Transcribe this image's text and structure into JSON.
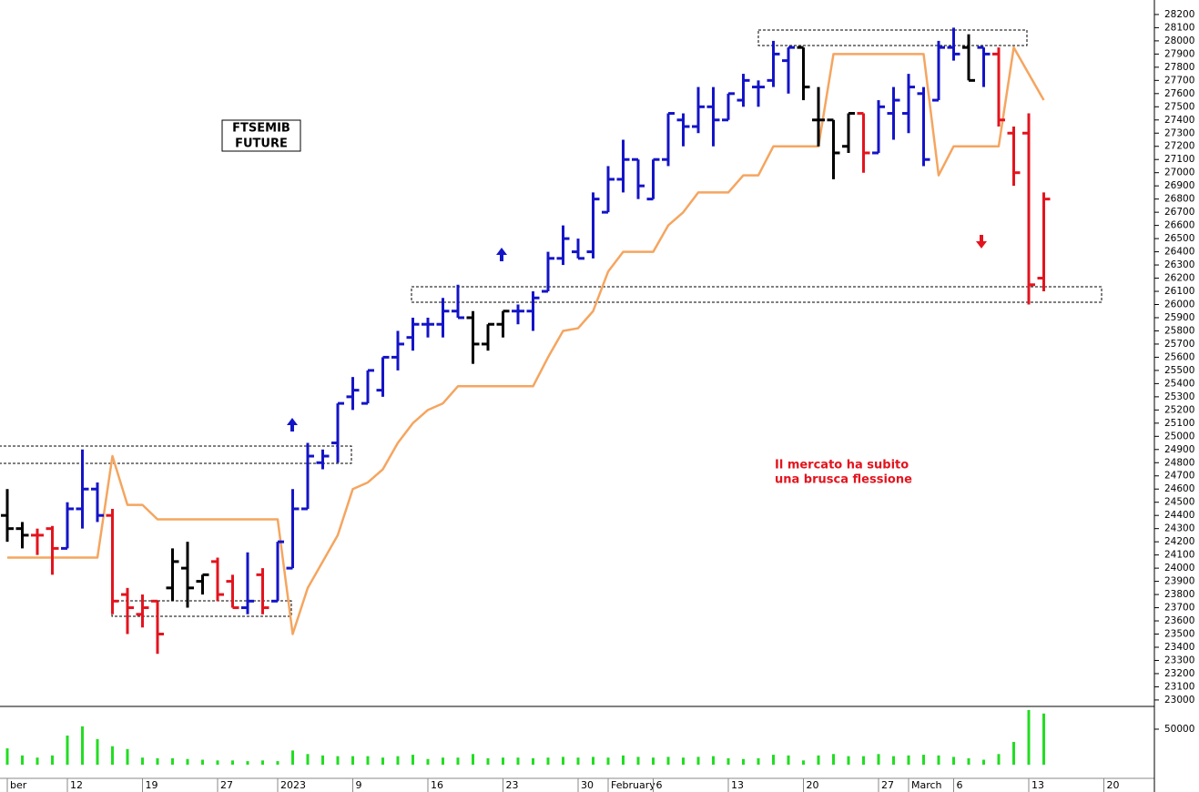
{
  "chart_data": {
    "type": "ohlc",
    "title": "FTSEMIB",
    "subtitle": "FUTURE",
    "annotation": [
      "Il mercato ha subito",
      "una brusca flessione"
    ],
    "categories": [
      "ber",
      null,
      null,
      null,
      "12",
      null,
      null,
      null,
      null,
      "19",
      null,
      null,
      null,
      null,
      "27",
      null,
      null,
      null,
      "2023",
      null,
      null,
      null,
      null,
      "9",
      null,
      null,
      null,
      null,
      "16",
      null,
      null,
      null,
      null,
      "23",
      null,
      null,
      null,
      null,
      "30",
      null,
      "February",
      null,
      null,
      "6",
      null,
      null,
      null,
      null,
      "13",
      null,
      null,
      null,
      null,
      "20",
      null,
      null,
      null,
      null,
      "27",
      null,
      "March",
      null,
      null,
      "6",
      null,
      null,
      null,
      null,
      "13",
      null,
      null,
      null,
      null,
      "20"
    ],
    "open": [
      24400,
      24300,
      24250,
      24300,
      24150,
      24450,
      24600,
      24400,
      23800,
      23650,
      23750,
      23850,
      24000,
      23900,
      24050,
      23900,
      23700,
      23950,
      23750,
      24000,
      24450,
      24800,
      24950,
      25300,
      25250,
      25350,
      25600,
      25750,
      25850,
      25850,
      25950,
      25900,
      25700,
      25850,
      25950,
      25950,
      26100,
      26350,
      26400,
      26400,
      26700,
      26950,
      27100,
      26800,
      27100,
      27400,
      27350,
      27500,
      27400,
      27550,
      27650,
      27700,
      27850,
      27950,
      27400,
      27400,
      27200,
      27450,
      27150,
      27450,
      27450,
      27600,
      27550,
      27950,
      27950,
      27950,
      27900,
      27300,
      27300,
      26200,
      null,
      null,
      null,
      null
    ],
    "high": [
      24600,
      24350,
      24300,
      24320,
      24500,
      24900,
      24650,
      24450,
      23850,
      23800,
      23750,
      24150,
      24200,
      23950,
      24080,
      23950,
      24120,
      24000,
      24200,
      24600,
      24950,
      24900,
      25250,
      25450,
      25500,
      25600,
      25800,
      25900,
      25900,
      26050,
      26150,
      25950,
      25850,
      25950,
      26000,
      26100,
      26400,
      26600,
      26500,
      26850,
      27050,
      27250,
      27100,
      27100,
      27450,
      27450,
      27650,
      27650,
      27600,
      27750,
      27700,
      28000,
      27950,
      27950,
      27650,
      27400,
      27450,
      27450,
      27550,
      27650,
      27750,
      27650,
      28000,
      28100,
      28050,
      27950,
      27950,
      27350,
      27450,
      26850,
      null,
      null,
      null,
      null
    ],
    "low": [
      24200,
      24150,
      24100,
      23950,
      24150,
      24300,
      24350,
      23650,
      23500,
      23550,
      23350,
      23750,
      23700,
      23800,
      23750,
      23700,
      23650,
      23650,
      23750,
      24000,
      24450,
      24750,
      24800,
      25200,
      25250,
      25300,
      25500,
      25650,
      25750,
      25750,
      25900,
      25550,
      25650,
      25750,
      25850,
      25800,
      26100,
      26300,
      26350,
      26350,
      26700,
      26850,
      26800,
      26800,
      27050,
      27200,
      27300,
      27200,
      27400,
      27500,
      27500,
      27650,
      27600,
      27550,
      27200,
      26950,
      27150,
      27000,
      27150,
      27250,
      27300,
      27050,
      27550,
      27850,
      27700,
      27650,
      27350,
      26900,
      26000,
      26100,
      null,
      null,
      null,
      null
    ],
    "close": [
      24300,
      24250,
      24250,
      24150,
      24450,
      24600,
      24400,
      23750,
      23700,
      23700,
      23500,
      24050,
      23850,
      23950,
      23800,
      23700,
      23750,
      23700,
      24200,
      24450,
      24850,
      24850,
      25250,
      25350,
      25500,
      25600,
      25700,
      25850,
      25850,
      25950,
      25900,
      25700,
      25850,
      25950,
      25950,
      26050,
      26350,
      26500,
      26350,
      26800,
      26950,
      27100,
      26900,
      27100,
      27450,
      27350,
      27500,
      27400,
      27600,
      27700,
      27650,
      27900,
      27950,
      27650,
      27400,
      27150,
      27450,
      27150,
      27500,
      27550,
      27650,
      27100,
      27950,
      27900,
      27700,
      27900,
      27400,
      27000,
      26150,
      26800,
      null,
      null,
      null,
      null
    ],
    "colors": [
      "#000000",
      "#000000",
      "#e3141e",
      "#e3141e",
      "#1414c8",
      "#1414c8",
      "#1414c8",
      "#e3141e",
      "#e3141e",
      "#e3141e",
      "#e3141e",
      "#000000",
      "#000000",
      "#000000",
      "#e3141e",
      "#e3141e",
      "#1414c8",
      "#e3141e",
      "#1414c8",
      "#1414c8",
      "#1414c8",
      "#1414c8",
      "#1414c8",
      "#1414c8",
      "#1414c8",
      "#1414c8",
      "#1414c8",
      "#1414c8",
      "#1414c8",
      "#1414c8",
      "#1414c8",
      "#000000",
      "#000000",
      "#000000",
      "#1414c8",
      "#1414c8",
      "#1414c8",
      "#1414c8",
      "#1414c8",
      "#1414c8",
      "#1414c8",
      "#1414c8",
      "#1414c8",
      "#1414c8",
      "#1414c8",
      "#1414c8",
      "#1414c8",
      "#1414c8",
      "#1414c8",
      "#1414c8",
      "#1414c8",
      "#1414c8",
      "#1414c8",
      "#000000",
      "#000000",
      "#000000",
      "#000000",
      "#e3141e",
      "#1414c8",
      "#1414c8",
      "#1414c8",
      "#1414c8",
      "#1414c8",
      "#1414c8",
      "#000000",
      "#1414c8",
      "#e3141e",
      "#e3141e",
      "#e3141e",
      "#e3141e",
      null,
      null,
      null,
      null
    ],
    "line": {
      "color": "#f5a55f",
      "values": [
        24080,
        24080,
        24080,
        24080,
        24080,
        24080,
        24080,
        24850,
        24480,
        24480,
        24370,
        24370,
        24370,
        24370,
        24370,
        24370,
        24370,
        24370,
        24370,
        23500,
        23850,
        24050,
        24250,
        24600,
        24650,
        24750,
        24950,
        25100,
        25200,
        25250,
        25380,
        25380,
        25380,
        25380,
        25380,
        25380,
        25600,
        25800,
        25820,
        25950,
        26250,
        26400,
        26400,
        26400,
        26600,
        26700,
        26850,
        26850,
        26850,
        26980,
        26980,
        27200,
        27200,
        27200,
        27200,
        27900,
        27900,
        27900,
        27900,
        27900,
        27900,
        27900,
        26980,
        27200,
        27200,
        27200,
        27200,
        27950,
        27750,
        27550,
        null,
        null,
        null,
        null
      ]
    },
    "volume": {
      "color": "#22dd22",
      "ylim": [
        0,
        82000
      ],
      "yticks": [
        50000
      ],
      "values": [
        23000,
        13000,
        10000,
        13000,
        41000,
        54000,
        36000,
        26000,
        22000,
        10000,
        9000,
        9000,
        8000,
        7000,
        6000,
        6000,
        5000,
        6000,
        5000,
        20000,
        15000,
        13000,
        12000,
        12000,
        12000,
        10000,
        12000,
        14000,
        8000,
        10000,
        10000,
        15000,
        9000,
        10000,
        10000,
        9000,
        10000,
        11000,
        10000,
        11000,
        10000,
        13000,
        11000,
        10000,
        11000,
        10000,
        11000,
        12000,
        9000,
        8000,
        9000,
        14000,
        13000,
        6000,
        13000,
        15000,
        12000,
        12000,
        15000,
        12000,
        13000,
        14000,
        13000,
        11000,
        9000,
        7000,
        15000,
        32000,
        77000,
        72000,
        null,
        null,
        null,
        null
      ]
    },
    "ylim": [
      22958,
      28310
    ],
    "yticks": [
      28200,
      28100,
      28000,
      27900,
      27800,
      27700,
      27600,
      27500,
      27400,
      27300,
      27200,
      27100,
      27000,
      26900,
      26800,
      26700,
      26600,
      26500,
      26400,
      26300,
      26200,
      26100,
      26000,
      25900,
      25800,
      25700,
      25600,
      25500,
      25400,
      25300,
      25200,
      25100,
      25000,
      24900,
      24800,
      24700,
      24600,
      24500,
      24400,
      24300,
      24200,
      24100,
      24000,
      23900,
      23800,
      23700,
      23600,
      23500,
      23400,
      23300,
      23200,
      23100,
      23000
    ]
  }
}
